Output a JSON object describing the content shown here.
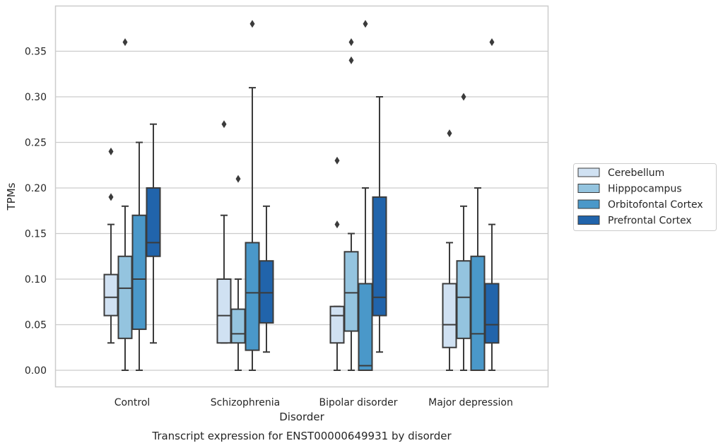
{
  "chart_data": {
    "type": "box",
    "title": "",
    "caption": "Transcript expression for ENST00000649931 by disorder",
    "xlabel": "Disorder",
    "ylabel": "TPMs",
    "ylim": [
      -0.018,
      0.4
    ],
    "yticks": [
      "0.00",
      "0.05",
      "0.10",
      "0.15",
      "0.20",
      "0.25",
      "0.30",
      "0.35"
    ],
    "grid": "horizontal",
    "legend_position": "right",
    "categories": [
      "Control",
      "Schizophrenia",
      "Bipolar disorder",
      "Major depression"
    ],
    "series": [
      {
        "name": "Cerebellum",
        "color": "#d0e1f2",
        "boxes": [
          {
            "whislo": 0.03,
            "q1": 0.06,
            "med": 0.08,
            "q3": 0.105,
            "whishi": 0.16,
            "fliers": [
              0.19,
              0.24
            ]
          },
          {
            "whislo": 0.03,
            "q1": 0.03,
            "med": 0.06,
            "q3": 0.1,
            "whishi": 0.17,
            "fliers": [
              0.27
            ]
          },
          {
            "whislo": 0.0,
            "q1": 0.03,
            "med": 0.06,
            "q3": 0.07,
            "whishi": 0.07,
            "fliers": [
              0.16,
              0.23
            ]
          },
          {
            "whislo": 0.0,
            "q1": 0.025,
            "med": 0.05,
            "q3": 0.095,
            "whishi": 0.14,
            "fliers": [
              0.26
            ]
          }
        ]
      },
      {
        "name": "Hipppocampus",
        "color": "#94c4df",
        "boxes": [
          {
            "whislo": 0.0,
            "q1": 0.035,
            "med": 0.09,
            "q3": 0.125,
            "whishi": 0.18,
            "fliers": [
              0.36
            ]
          },
          {
            "whislo": 0.0,
            "q1": 0.03,
            "med": 0.04,
            "q3": 0.067,
            "whishi": 0.1,
            "fliers": [
              0.21
            ]
          },
          {
            "whislo": 0.0,
            "q1": 0.043,
            "med": 0.085,
            "q3": 0.13,
            "whishi": 0.15,
            "fliers": [
              0.34,
              0.36
            ]
          },
          {
            "whislo": 0.0,
            "q1": 0.035,
            "med": 0.08,
            "q3": 0.12,
            "whishi": 0.18,
            "fliers": [
              0.3
            ]
          }
        ]
      },
      {
        "name": "Orbitofontal Cortex",
        "color": "#4a98c9",
        "boxes": [
          {
            "whislo": 0.0,
            "q1": 0.045,
            "med": 0.1,
            "q3": 0.17,
            "whishi": 0.25,
            "fliers": []
          },
          {
            "whislo": 0.0,
            "q1": 0.022,
            "med": 0.085,
            "q3": 0.14,
            "whishi": 0.31,
            "fliers": [
              0.38
            ]
          },
          {
            "whislo": 0.0,
            "q1": 0.0,
            "med": 0.005,
            "q3": 0.095,
            "whishi": 0.2,
            "fliers": [
              0.38
            ]
          },
          {
            "whislo": 0.0,
            "q1": 0.0,
            "med": 0.04,
            "q3": 0.125,
            "whishi": 0.2,
            "fliers": []
          }
        ]
      },
      {
        "name": "Prefrontal Cortex",
        "color": "#2164ab",
        "boxes": [
          {
            "whislo": 0.03,
            "q1": 0.125,
            "med": 0.14,
            "q3": 0.2,
            "whishi": 0.27,
            "fliers": []
          },
          {
            "whislo": 0.02,
            "q1": 0.052,
            "med": 0.085,
            "q3": 0.12,
            "whishi": 0.18,
            "fliers": []
          },
          {
            "whislo": 0.02,
            "q1": 0.06,
            "med": 0.08,
            "q3": 0.19,
            "whishi": 0.3,
            "fliers": []
          },
          {
            "whislo": 0.0,
            "q1": 0.03,
            "med": 0.05,
            "q3": 0.095,
            "whishi": 0.16,
            "fliers": [
              0.36
            ]
          }
        ]
      }
    ]
  }
}
